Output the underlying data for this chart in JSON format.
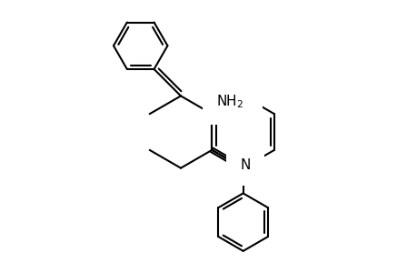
{
  "background_color": "#ffffff",
  "line_color": "#000000",
  "line_width": 1.5,
  "font_size": 11,
  "fig_width": 4.6,
  "fig_height": 3.0,
  "dpi": 100,
  "cx_r": 268,
  "cy_r": 155,
  "r_ring": 40,
  "r_benz": 30,
  "r_ph": 32
}
